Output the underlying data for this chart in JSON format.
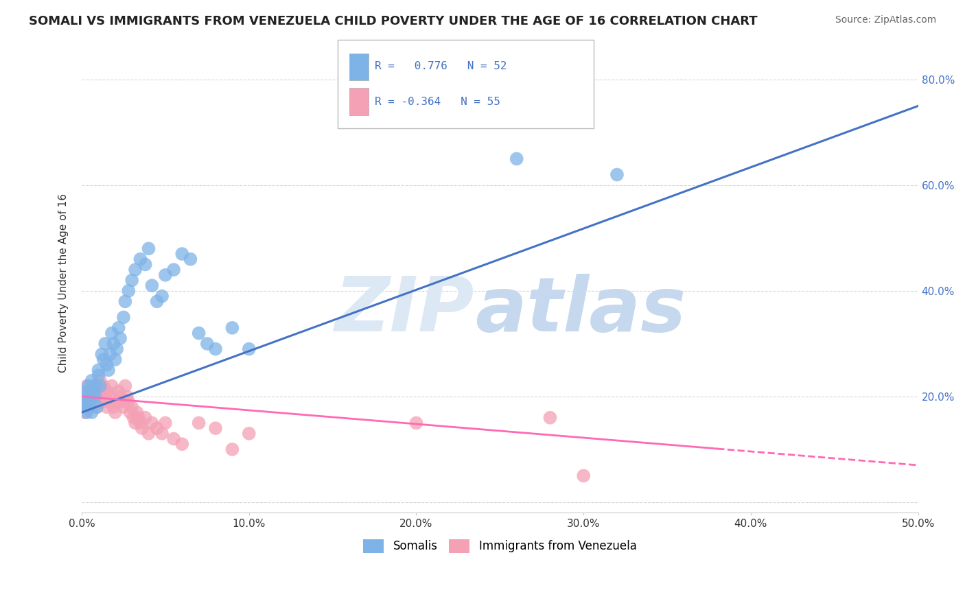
{
  "title": "SOMALI VS IMMIGRANTS FROM VENEZUELA CHILD POVERTY UNDER THE AGE OF 16 CORRELATION CHART",
  "source": "Source: ZipAtlas.com",
  "ylabel": "Child Poverty Under the Age of 16",
  "xlim": [
    0.0,
    0.5
  ],
  "ylim": [
    -0.02,
    0.85
  ],
  "yticks": [
    0.0,
    0.2,
    0.4,
    0.6,
    0.8
  ],
  "ytick_labels": [
    "",
    "20.0%",
    "40.0%",
    "60.0%",
    "80.0%"
  ],
  "xticks": [
    0.0,
    0.1,
    0.2,
    0.3,
    0.4,
    0.5
  ],
  "xtick_labels": [
    "0.0%",
    "10.0%",
    "20.0%",
    "30.0%",
    "40.0%",
    "50.0%"
  ],
  "somali_R": 0.776,
  "somali_N": 52,
  "venezuela_R": -0.364,
  "venezuela_N": 55,
  "somali_color": "#7EB3E8",
  "venezuela_color": "#F4A0B5",
  "somali_line_color": "#4472C4",
  "venezuela_line_color": "#FF69B4",
  "background_color": "#FFFFFF",
  "grid_color": "#CCCCCC",
  "somali_intercept": 0.17,
  "somali_slope": 1.16,
  "venezuela_intercept": 0.2,
  "venezuela_slope": -0.26,
  "somali_x": [
    0.001,
    0.002,
    0.002,
    0.003,
    0.003,
    0.004,
    0.004,
    0.005,
    0.005,
    0.006,
    0.006,
    0.007,
    0.008,
    0.008,
    0.009,
    0.01,
    0.01,
    0.011,
    0.012,
    0.013,
    0.014,
    0.015,
    0.016,
    0.017,
    0.018,
    0.019,
    0.02,
    0.021,
    0.022,
    0.023,
    0.025,
    0.026,
    0.028,
    0.03,
    0.032,
    0.035,
    0.038,
    0.04,
    0.042,
    0.045,
    0.048,
    0.05,
    0.055,
    0.06,
    0.065,
    0.07,
    0.075,
    0.08,
    0.09,
    0.1,
    0.26,
    0.32
  ],
  "somali_y": [
    0.18,
    0.19,
    0.2,
    0.17,
    0.21,
    0.22,
    0.18,
    0.2,
    0.19,
    0.23,
    0.17,
    0.21,
    0.2,
    0.22,
    0.18,
    0.25,
    0.24,
    0.22,
    0.28,
    0.27,
    0.3,
    0.26,
    0.25,
    0.28,
    0.32,
    0.3,
    0.27,
    0.29,
    0.33,
    0.31,
    0.35,
    0.38,
    0.4,
    0.42,
    0.44,
    0.46,
    0.45,
    0.48,
    0.41,
    0.38,
    0.39,
    0.43,
    0.44,
    0.47,
    0.46,
    0.32,
    0.3,
    0.29,
    0.33,
    0.29,
    0.65,
    0.62
  ],
  "venezuela_x": [
    0.001,
    0.002,
    0.002,
    0.003,
    0.003,
    0.004,
    0.005,
    0.006,
    0.007,
    0.008,
    0.009,
    0.01,
    0.01,
    0.011,
    0.012,
    0.013,
    0.014,
    0.015,
    0.015,
    0.016,
    0.017,
    0.018,
    0.019,
    0.02,
    0.021,
    0.022,
    0.023,
    0.024,
    0.025,
    0.026,
    0.027,
    0.028,
    0.029,
    0.03,
    0.031,
    0.032,
    0.033,
    0.034,
    0.035,
    0.036,
    0.038,
    0.04,
    0.042,
    0.045,
    0.048,
    0.05,
    0.055,
    0.06,
    0.07,
    0.08,
    0.09,
    0.1,
    0.2,
    0.28,
    0.3
  ],
  "venezuela_y": [
    0.18,
    0.17,
    0.2,
    0.19,
    0.22,
    0.18,
    0.21,
    0.2,
    0.19,
    0.22,
    0.18,
    0.21,
    0.2,
    0.23,
    0.19,
    0.22,
    0.2,
    0.18,
    0.21,
    0.19,
    0.2,
    0.22,
    0.18,
    0.17,
    0.19,
    0.21,
    0.2,
    0.19,
    0.18,
    0.22,
    0.2,
    0.19,
    0.17,
    0.18,
    0.16,
    0.15,
    0.17,
    0.16,
    0.15,
    0.14,
    0.16,
    0.13,
    0.15,
    0.14,
    0.13,
    0.15,
    0.12,
    0.11,
    0.15,
    0.14,
    0.1,
    0.13,
    0.15,
    0.16,
    0.05
  ]
}
